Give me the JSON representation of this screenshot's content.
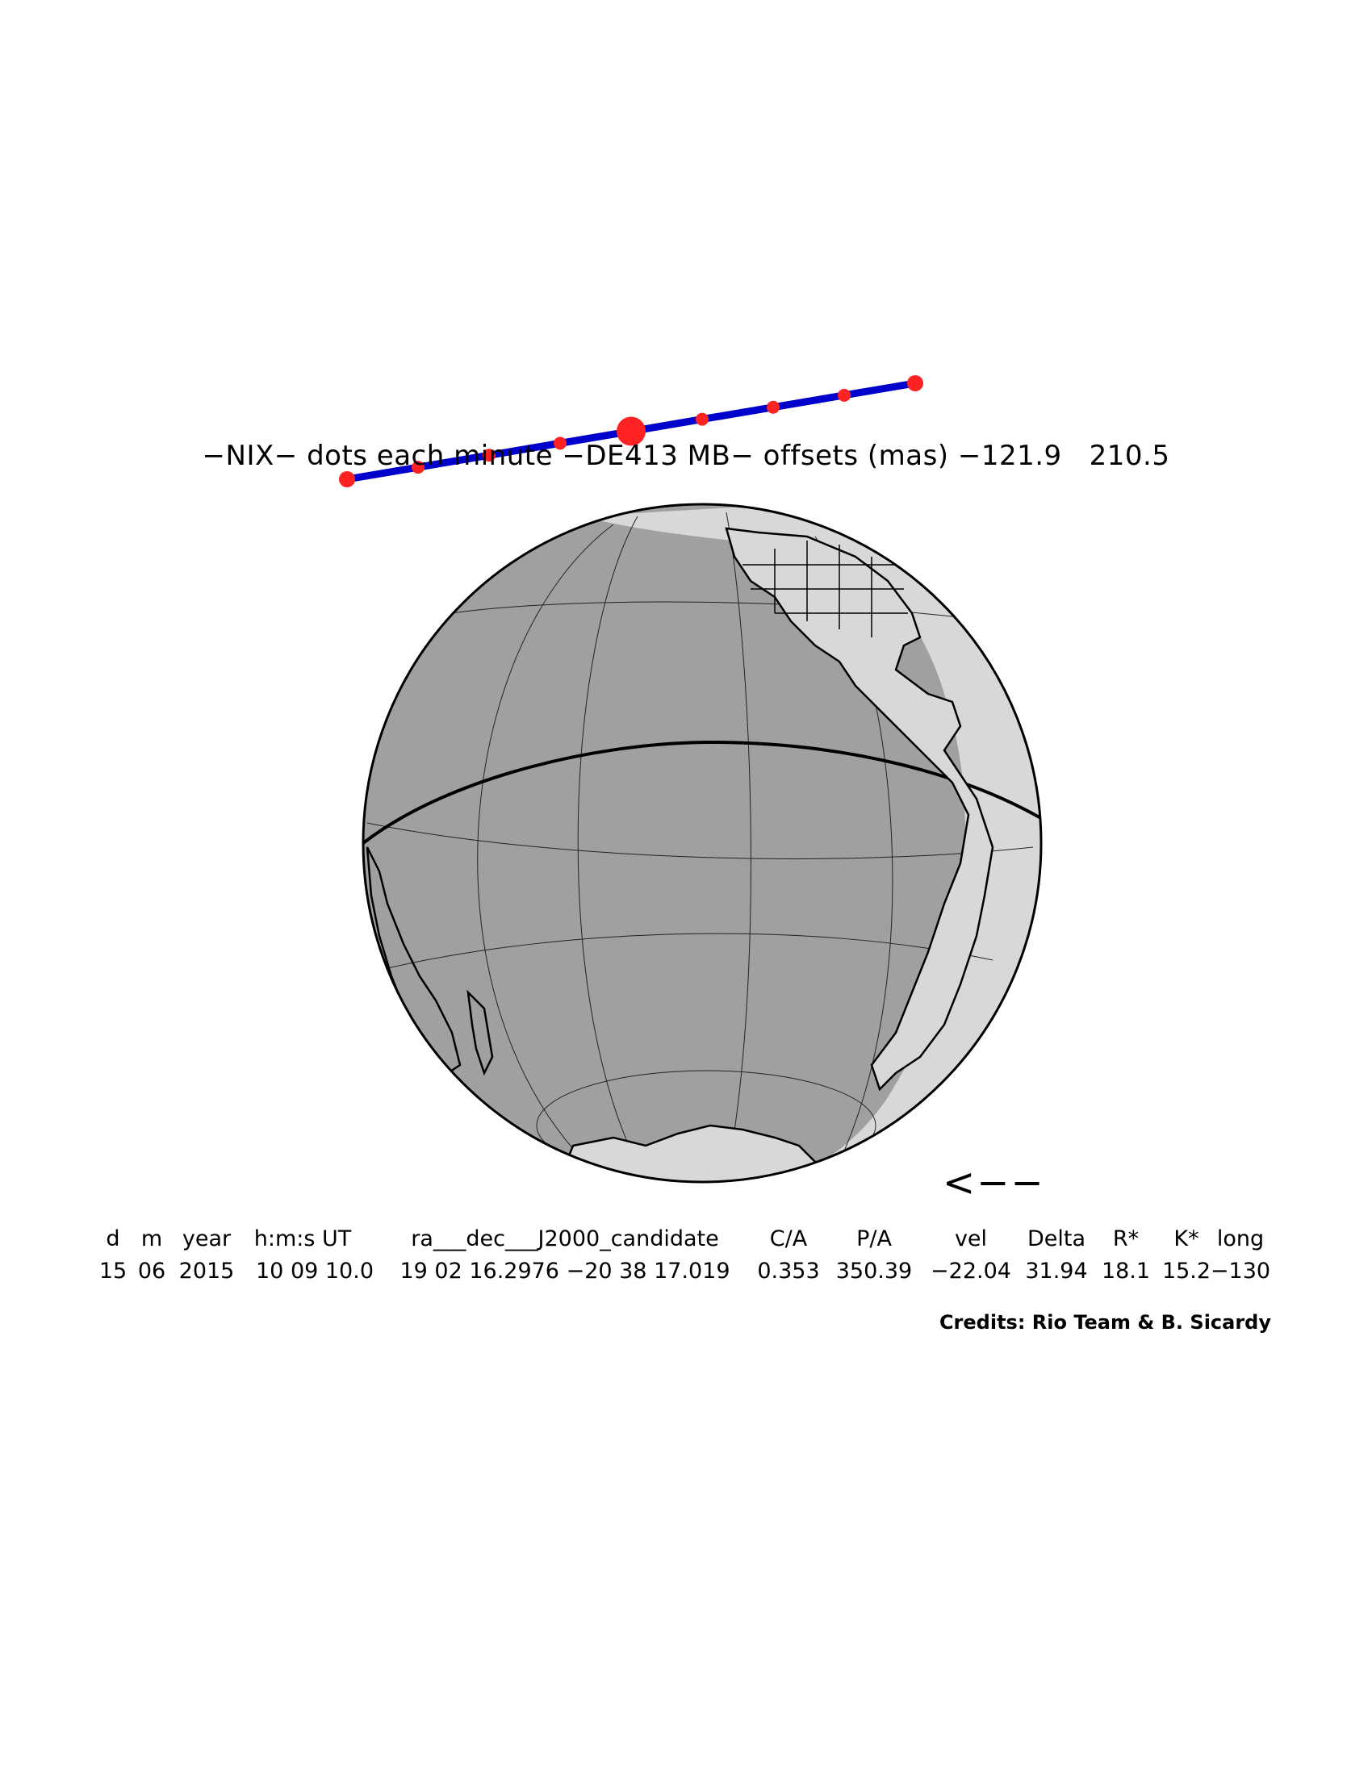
{
  "header": {
    "text": "−NIX− dots each minute −DE413 MB− offsets (mas) −121.9   210.5"
  },
  "track": {
    "line_color": "#0000cc",
    "dot_color": "#ff2222",
    "dots_per": "minute"
  },
  "globe": {
    "ocean_color": "#a0a0a0",
    "night_land_color": "#a0a0a0",
    "day_band_color": "#d8d8d8",
    "outline_color": "#000000"
  },
  "direction_arrow": "<−−",
  "table": {
    "headers": [
      "d",
      "m",
      "year",
      "h:m:s UT",
      "ra___dec___J2000_candidate",
      "C/A",
      "P/A",
      "vel",
      "Delta",
      "R*",
      "K*",
      "long"
    ],
    "values": [
      "15",
      "06",
      "2015",
      "10 09 10.0",
      "19 02 16.2976 −20 38 17.019",
      "0.353",
      "350.39",
      "−22.04",
      "31.94",
      "18.1",
      "15.2",
      "−130"
    ]
  },
  "credits": "Credits: Rio Team & B. Sicardy"
}
